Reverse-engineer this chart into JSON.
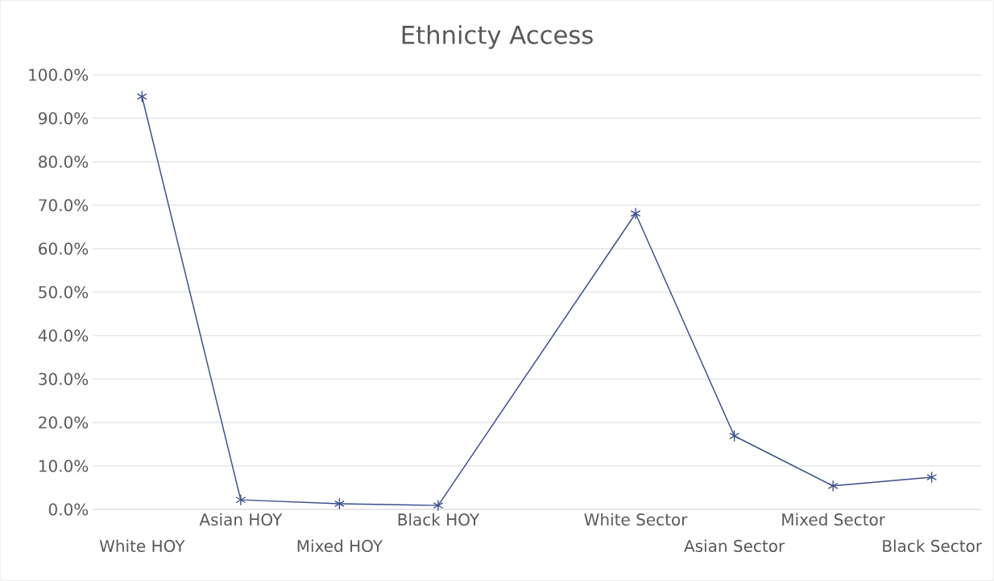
{
  "chart_data": {
    "type": "line",
    "title": "Ethnicty Access",
    "categories": [
      "White HOY",
      "Asian HOY",
      "Mixed HOY",
      "Black HOY",
      null,
      "White Sector",
      "Asian Sector",
      "Mixed Sector",
      "Black Sector"
    ],
    "series": [
      {
        "color": "#3b4e8c",
        "values": [
          95.0,
          2.2,
          1.3,
          0.9,
          null,
          68.1,
          16.9,
          5.4,
          7.4
        ]
      }
    ],
    "ylim": [
      0,
      100
    ],
    "yticks": [
      {
        "value": 0,
        "label": "0.0%"
      },
      {
        "value": 10,
        "label": "10.0%"
      },
      {
        "value": 20,
        "label": "20.0%"
      },
      {
        "value": 30,
        "label": "30.0%"
      },
      {
        "value": 40,
        "label": "40.0%"
      },
      {
        "value": 50,
        "label": "50.0%"
      },
      {
        "value": 60,
        "label": "60.0%"
      },
      {
        "value": 70,
        "label": "70.0%"
      },
      {
        "value": 80,
        "label": "80.0%"
      },
      {
        "value": 90,
        "label": "90.0%"
      },
      {
        "value": 100,
        "label": "100.0%"
      }
    ],
    "grid": "y",
    "marker": "cross",
    "line_style": "solid"
  }
}
